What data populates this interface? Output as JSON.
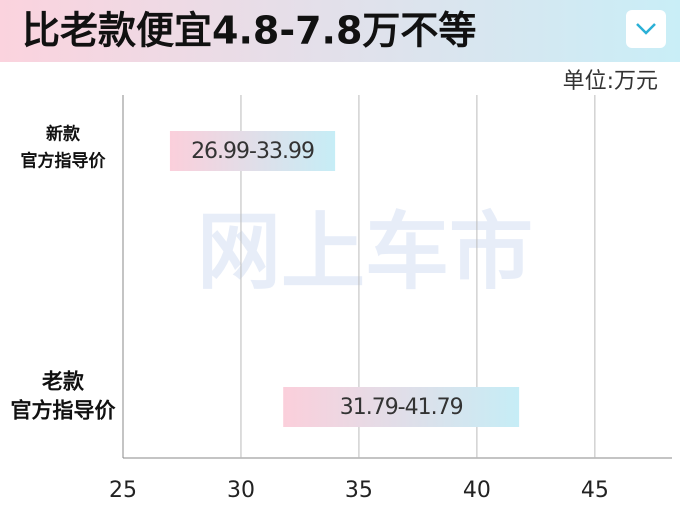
{
  "chart_data": {
    "type": "range-bar",
    "title": "比老款便宜4.8-7.8万不等",
    "unit_label": "单位:万元",
    "watermark": "网上车市",
    "categories": [
      [
        "新款",
        "官方指导价"
      ],
      [
        "老款",
        "官方指导价"
      ]
    ],
    "series": [
      {
        "low": [
          26.99,
          31.79
        ],
        "high": [
          33.99,
          41.79
        ],
        "value_labels": [
          "26.99-33.99",
          "31.79-41.79"
        ],
        "colors": [
          "#fbcfdb",
          "#c6edf6"
        ]
      }
    ],
    "xlim": [
      25,
      48.1
    ],
    "xticks": [
      25,
      30,
      35,
      40,
      45
    ],
    "grid": true
  }
}
